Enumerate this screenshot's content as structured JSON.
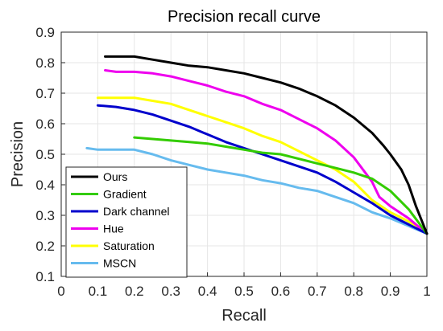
{
  "chart_data": {
    "type": "line",
    "title": "Precision recall curve",
    "xlabel": "Recall",
    "ylabel": "Precision",
    "xlim": [
      0,
      1
    ],
    "ylim": [
      0.1,
      0.9
    ],
    "xticks": [
      "0",
      "0.1",
      "0.2",
      "0.3",
      "0.4",
      "0.5",
      "0.6",
      "0.7",
      "0.8",
      "0.9",
      "1"
    ],
    "yticks": [
      "0.1",
      "0.2",
      "0.3",
      "0.4",
      "0.5",
      "0.6",
      "0.7",
      "0.8",
      "0.9"
    ],
    "grid": true,
    "legend_position": "bottom-left",
    "series": [
      {
        "name": "Ours",
        "color": "#000000",
        "x": [
          0.12,
          0.15,
          0.2,
          0.25,
          0.3,
          0.35,
          0.4,
          0.45,
          0.5,
          0.55,
          0.6,
          0.65,
          0.7,
          0.75,
          0.8,
          0.85,
          0.88,
          0.9,
          0.93,
          0.95,
          0.97,
          0.99,
          1.0
        ],
        "y": [
          0.82,
          0.82,
          0.82,
          0.81,
          0.8,
          0.79,
          0.785,
          0.775,
          0.765,
          0.75,
          0.735,
          0.715,
          0.69,
          0.66,
          0.62,
          0.57,
          0.53,
          0.5,
          0.45,
          0.4,
          0.33,
          0.27,
          0.24
        ]
      },
      {
        "name": "Gradient",
        "color": "#33cc00",
        "x": [
          0.2,
          0.25,
          0.3,
          0.35,
          0.4,
          0.45,
          0.5,
          0.55,
          0.6,
          0.65,
          0.7,
          0.75,
          0.8,
          0.85,
          0.9,
          0.95,
          1.0
        ],
        "y": [
          0.555,
          0.55,
          0.545,
          0.54,
          0.535,
          0.525,
          0.515,
          0.505,
          0.5,
          0.485,
          0.47,
          0.455,
          0.44,
          0.42,
          0.38,
          0.32,
          0.24
        ]
      },
      {
        "name": "Dark channel",
        "color": "#0000cc",
        "x": [
          0.1,
          0.15,
          0.2,
          0.25,
          0.3,
          0.35,
          0.4,
          0.45,
          0.5,
          0.55,
          0.6,
          0.65,
          0.7,
          0.75,
          0.8,
          0.85,
          0.9,
          0.95,
          1.0
        ],
        "y": [
          0.66,
          0.655,
          0.645,
          0.63,
          0.61,
          0.59,
          0.565,
          0.54,
          0.52,
          0.5,
          0.48,
          0.46,
          0.44,
          0.41,
          0.375,
          0.34,
          0.3,
          0.27,
          0.24
        ]
      },
      {
        "name": "Hue",
        "color": "#ee00ee",
        "x": [
          0.12,
          0.15,
          0.2,
          0.25,
          0.3,
          0.35,
          0.4,
          0.45,
          0.5,
          0.55,
          0.6,
          0.65,
          0.7,
          0.75,
          0.8,
          0.85,
          0.87,
          0.9,
          0.95,
          1.0
        ],
        "y": [
          0.775,
          0.77,
          0.77,
          0.765,
          0.755,
          0.74,
          0.725,
          0.705,
          0.69,
          0.665,
          0.645,
          0.615,
          0.585,
          0.545,
          0.49,
          0.41,
          0.36,
          0.33,
          0.29,
          0.24
        ]
      },
      {
        "name": "Saturation",
        "color": "#ffff00",
        "x": [
          0.1,
          0.15,
          0.2,
          0.25,
          0.3,
          0.35,
          0.4,
          0.45,
          0.5,
          0.55,
          0.6,
          0.65,
          0.7,
          0.75,
          0.8,
          0.85,
          0.9,
          0.95,
          1.0
        ],
        "y": [
          0.685,
          0.685,
          0.685,
          0.675,
          0.665,
          0.645,
          0.625,
          0.605,
          0.585,
          0.56,
          0.54,
          0.51,
          0.48,
          0.45,
          0.41,
          0.35,
          0.31,
          0.28,
          0.24
        ]
      },
      {
        "name": "MSCN",
        "color": "#66bbee",
        "x": [
          0.07,
          0.1,
          0.15,
          0.2,
          0.25,
          0.3,
          0.35,
          0.4,
          0.45,
          0.5,
          0.55,
          0.6,
          0.65,
          0.7,
          0.75,
          0.8,
          0.85,
          0.9,
          0.95,
          1.0
        ],
        "y": [
          0.52,
          0.515,
          0.515,
          0.515,
          0.5,
          0.48,
          0.465,
          0.45,
          0.44,
          0.43,
          0.415,
          0.405,
          0.39,
          0.38,
          0.36,
          0.34,
          0.31,
          0.29,
          0.265,
          0.24
        ]
      }
    ]
  }
}
